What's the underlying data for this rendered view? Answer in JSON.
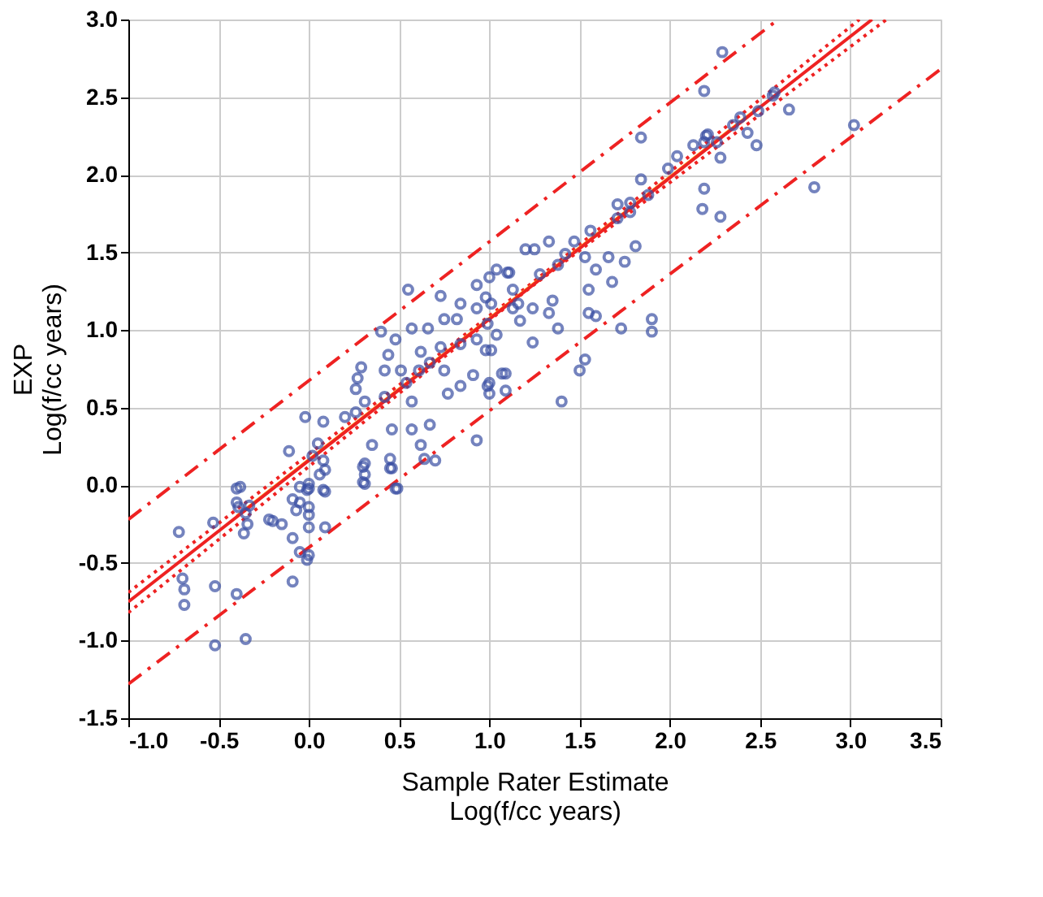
{
  "chart_data": {
    "type": "scatter",
    "xlabel": "Sample Rater Estimate\nLog(f/cc years)",
    "ylabel": "EXP\nLog(f/cc years)",
    "xlim": [
      -1.0,
      3.5
    ],
    "xticks": [
      {
        "value": -1.0,
        "label": "-1.0"
      },
      {
        "value": -0.5,
        "label": "-0.5"
      },
      {
        "value": 0.0,
        "label": "0.0"
      },
      {
        "value": 0.5,
        "label": "0.5"
      },
      {
        "value": 1.0,
        "label": "1.0"
      },
      {
        "value": 1.5,
        "label": "1.5"
      },
      {
        "value": 2.0,
        "label": "2.0"
      },
      {
        "value": 2.5,
        "label": "2.5"
      },
      {
        "value": 3.0,
        "label": "3.0"
      },
      {
        "value": 3.5,
        "label": "3.5"
      }
    ],
    "ylim": [
      -1.5,
      3.0
    ],
    "yticks": [
      {
        "value": -1.5,
        "label": "-1.5"
      },
      {
        "value": -1.0,
        "label": "-1.0"
      },
      {
        "value": -0.5,
        "label": "-0.5"
      },
      {
        "value": 0.0,
        "label": "0.0"
      },
      {
        "value": 0.5,
        "label": "0.5"
      },
      {
        "value": 1.0,
        "label": "1.0"
      },
      {
        "value": 1.5,
        "label": "1.5"
      },
      {
        "value": 2.0,
        "label": "2.0"
      },
      {
        "value": 2.5,
        "label": "2.5"
      },
      {
        "value": 3.0,
        "label": "3.0"
      }
    ],
    "grid": true,
    "series": [
      {
        "color": "#3a4fa3",
        "marker": "circle",
        "x": [
          -0.72,
          -0.7,
          -0.69,
          -0.69,
          -0.53,
          -0.52,
          -0.52,
          -0.4,
          -0.4,
          -0.39,
          -0.36,
          -0.35,
          -0.34,
          -0.4,
          -0.35,
          -0.22,
          -0.15,
          -0.09,
          -0.09,
          -0.05,
          -0.05,
          -0.05,
          0.0,
          0.0,
          0.0,
          0.0,
          0.0,
          -0.01,
          0.09,
          0.09,
          0.09,
          0.3,
          0.3,
          0.45,
          0.48,
          -0.38,
          -0.33,
          -0.2,
          -0.09,
          -0.07,
          -0.01,
          0.0,
          0.06,
          0.08,
          0.08,
          0.05,
          0.08,
          -0.02,
          0.02,
          -0.11,
          0.2,
          0.26,
          0.27,
          0.26,
          0.29,
          0.31,
          0.35,
          0.31,
          0.31,
          0.31,
          0.46,
          0.45,
          0.46,
          0.49,
          0.42,
          0.42,
          0.44,
          0.4,
          0.48,
          0.51,
          0.54,
          0.57,
          0.62,
          0.64,
          0.7,
          0.67,
          0.57,
          0.61,
          0.62,
          0.55,
          0.57,
          0.66,
          0.67,
          0.73,
          0.75,
          0.77,
          0.75,
          0.73,
          0.82,
          0.84,
          0.84,
          0.84,
          0.91,
          0.93,
          0.93,
          0.93,
          0.98,
          0.99,
          0.99,
          1.01,
          1.07,
          1.09,
          1.04,
          1.1,
          1.13,
          1.16,
          1.17,
          1.24,
          1.24,
          1.28,
          1.33,
          0.93,
          1.0,
          1.11,
          1.2,
          1.25,
          1.01,
          1.13,
          1.04,
          0.98,
          1.09,
          1.0,
          1.0,
          1.35,
          1.38,
          1.33,
          1.38,
          1.42,
          1.47,
          1.56,
          1.53,
          1.59,
          1.55,
          1.55,
          1.59,
          1.68,
          1.66,
          1.75,
          1.81,
          1.73,
          1.9,
          1.9,
          1.53,
          1.5,
          1.4,
          1.71,
          1.71,
          1.78,
          1.78,
          1.84,
          1.88,
          1.99,
          2.04,
          1.84,
          2.13,
          2.19,
          2.21,
          2.19,
          2.18,
          2.28,
          2.28,
          2.35,
          2.39,
          2.43,
          2.48,
          2.49,
          2.57,
          2.66,
          2.8,
          3.02,
          2.26,
          2.29,
          2.19,
          2.58,
          2.2
        ],
        "values": [
          -0.3,
          -0.6,
          -0.67,
          -0.77,
          -0.24,
          -0.65,
          -1.03,
          -0.02,
          -0.11,
          -0.14,
          -0.31,
          -0.18,
          -0.25,
          -0.7,
          -0.99,
          -0.22,
          -0.25,
          -0.34,
          -0.62,
          -0.01,
          -0.11,
          -0.43,
          -0.02,
          -0.14,
          -0.19,
          -0.27,
          -0.45,
          -0.48,
          -0.04,
          -0.27,
          0.1,
          0.12,
          0.02,
          0.11,
          -0.02,
          -0.01,
          -0.13,
          -0.23,
          -0.09,
          -0.16,
          -0.03,
          0.01,
          0.07,
          0.16,
          -0.03,
          0.27,
          0.41,
          0.44,
          0.19,
          0.22,
          0.44,
          0.47,
          0.69,
          0.62,
          0.76,
          0.54,
          0.26,
          0.14,
          0.07,
          0.01,
          0.36,
          0.17,
          0.11,
          -0.02,
          0.57,
          0.74,
          0.84,
          0.99,
          0.94,
          0.74,
          0.66,
          0.36,
          0.26,
          0.17,
          0.16,
          0.39,
          0.54,
          0.74,
          0.86,
          1.26,
          1.01,
          1.01,
          0.79,
          0.89,
          0.74,
          0.59,
          1.07,
          1.22,
          1.07,
          1.17,
          0.91,
          0.64,
          0.71,
          0.94,
          1.29,
          1.14,
          1.21,
          1.04,
          0.64,
          0.87,
          0.72,
          0.61,
          1.39,
          1.37,
          1.26,
          1.17,
          1.06,
          0.92,
          1.14,
          1.36,
          1.11,
          0.29,
          1.34,
          1.37,
          1.52,
          1.52,
          1.17,
          1.14,
          0.97,
          0.87,
          0.72,
          0.66,
          0.59,
          1.19,
          1.01,
          1.57,
          1.42,
          1.49,
          1.57,
          1.64,
          1.47,
          1.39,
          1.26,
          1.11,
          1.09,
          1.31,
          1.47,
          1.44,
          1.54,
          1.01,
          1.07,
          0.99,
          0.81,
          0.74,
          0.54,
          1.81,
          1.72,
          1.82,
          1.76,
          1.97,
          1.87,
          2.04,
          2.12,
          2.24,
          2.19,
          2.21,
          2.26,
          1.91,
          1.78,
          1.73,
          2.11,
          2.32,
          2.37,
          2.27,
          2.19,
          2.41,
          2.51,
          2.42,
          1.92,
          2.32,
          2.21,
          2.79,
          2.54,
          2.53,
          2.25
        ]
      },
      {
        "type": "line",
        "color": "#ee2222",
        "line_style": "dashed",
        "x": [
          -1.0,
          2.6
        ],
        "values": [
          -0.22,
          3.0
        ]
      },
      {
        "type": "line",
        "color": "#ee2222",
        "line_style": "dashed",
        "x": [
          -1.0,
          3.5
        ],
        "values": [
          -1.28,
          2.68
        ]
      },
      {
        "type": "line",
        "color": "#ee2222",
        "line_style": "dotted",
        "x": [
          -1.0,
          1.2,
          3.05
        ],
        "values": [
          -0.69,
          1.27,
          3.0
        ]
      },
      {
        "type": "line",
        "color": "#ee2222",
        "line_style": "dotted",
        "x": [
          -1.0,
          1.2,
          3.2
        ],
        "values": [
          -0.82,
          1.25,
          3.0
        ]
      },
      {
        "type": "line",
        "color": "#ff9a1a",
        "line_style": "solid",
        "x": [
          -0.4,
          2.5
        ],
        "values": [
          -0.2,
          2.44
        ]
      },
      {
        "type": "line",
        "color": "#ee2222",
        "line_style": "solid",
        "x": [
          -1.0,
          3.12
        ],
        "values": [
          -0.75,
          3.0
        ]
      }
    ]
  }
}
